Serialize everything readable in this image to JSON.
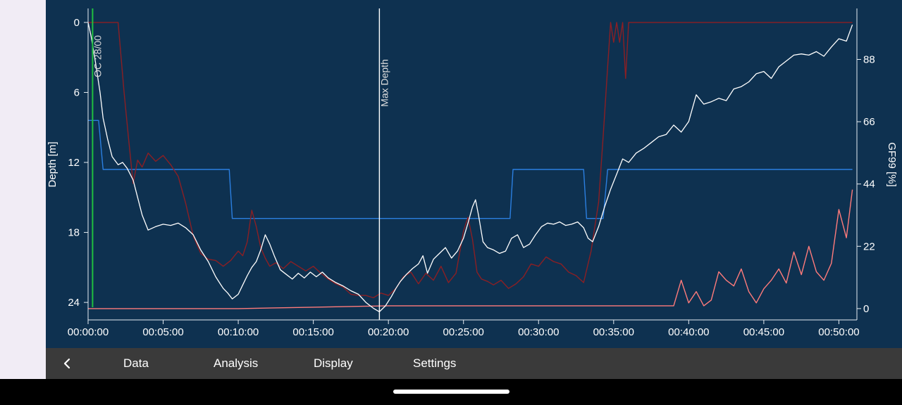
{
  "colors": {
    "background": "#0e3150",
    "depth_line": "#ffffff",
    "gf99_line": "#ff7b7b",
    "tissue_line": "#8b1f24",
    "ceiling_line": "#2b7fe0",
    "event_gas_line": "#20c040",
    "axis": "#e6edf3"
  },
  "markers": {
    "gas_change_label": "OC 28/00",
    "max_depth_label": "Max Depth"
  },
  "nav": {
    "back_icon": "chevron-left-icon",
    "items": [
      "Data",
      "Analysis",
      "Display",
      "Settings"
    ]
  },
  "chart_data": {
    "type": "line",
    "x_unit": "minutes",
    "xlim": [
      0,
      51.2
    ],
    "x_ticks": [
      "00:00:00",
      "00:05:00",
      "00:10:00",
      "00:15:00",
      "00:20:00",
      "00:25:00",
      "00:30:00",
      "00:35:00",
      "00:40:00",
      "00:45:00",
      "00:50:00"
    ],
    "ylabel_left": "Depth [m]",
    "ylim_left": [
      25.5,
      -1.2
    ],
    "y_ticks_left": [
      "0",
      "6",
      "12",
      "18",
      "24"
    ],
    "ylabel_right": "GF99 [%]",
    "ylim_right": [
      -4,
      106
    ],
    "y_ticks_right": [
      "0",
      "22",
      "44",
      "66",
      "88"
    ],
    "gas_change_x": 0.3,
    "max_depth_x": 19.4,
    "series": [
      {
        "key": "depth",
        "axis": "left",
        "x": [
          0,
          0.2,
          0.5,
          0.8,
          1,
          1.3,
          1.6,
          2,
          2.3,
          2.6,
          3,
          3.3,
          3.6,
          4,
          4.5,
          5,
          5.5,
          6,
          6.5,
          7,
          7.5,
          8,
          8.5,
          8.8,
          9,
          9.3,
          9.6,
          10,
          10.3,
          10.6,
          10.9,
          11.2,
          11.5,
          11.8,
          12.1,
          12.4,
          12.8,
          13.2,
          13.6,
          14,
          14.4,
          14.8,
          15.2,
          15.6,
          16,
          16.5,
          17,
          17.5,
          18,
          18.5,
          19,
          19.4,
          19.8,
          20.2,
          20.5,
          20.8,
          21.2,
          21.6,
          22,
          22.3,
          22.6,
          23,
          23.4,
          23.8,
          24.2,
          24.6,
          25,
          25.3,
          25.6,
          25.8,
          26,
          26.3,
          26.6,
          27,
          27.4,
          27.8,
          28.2,
          28.6,
          29,
          29.4,
          29.8,
          30.2,
          30.6,
          31,
          31.4,
          31.8,
          32.2,
          32.6,
          33,
          33.3,
          33.6,
          34,
          34.4,
          34.8,
          35.2,
          35.6,
          36,
          36.5,
          37,
          37.5,
          38,
          38.5,
          39,
          39.5,
          40,
          40.5,
          41,
          41.5,
          42,
          42.5,
          43,
          43.5,
          44,
          44.5,
          45,
          45.5,
          46,
          46.5,
          47,
          47.5,
          48,
          48.5,
          49,
          49.5,
          50,
          50.5,
          50.9
        ],
        "y": [
          0,
          1.2,
          3.5,
          6,
          8.2,
          10,
          11.5,
          12.2,
          12,
          12.5,
          13.5,
          15,
          16.5,
          17.8,
          17.5,
          17.3,
          17.4,
          17.2,
          17.6,
          18.2,
          19.5,
          20.5,
          21.8,
          22.4,
          22.8,
          23.2,
          23.7,
          23.3,
          22.5,
          21.7,
          21,
          20.5,
          19.5,
          18.2,
          19,
          20,
          21.2,
          21.6,
          22,
          21.5,
          21.9,
          21.4,
          21.8,
          21.4,
          21.9,
          22.3,
          22.6,
          23,
          23.3,
          24,
          24.5,
          24.8,
          24.3,
          23.5,
          22.8,
          22.2,
          21.6,
          21.1,
          20.7,
          20,
          21.5,
          20.3,
          19.8,
          19.3,
          20.2,
          19.6,
          18.5,
          17.2,
          15.8,
          15.2,
          16.5,
          18.8,
          19.3,
          19.5,
          19.8,
          19.6,
          18.5,
          18.2,
          19.3,
          19,
          18.2,
          17.5,
          17.2,
          17.3,
          17.1,
          17.4,
          17.3,
          17.1,
          17.6,
          18.5,
          18.8,
          17.5,
          15.8,
          14.3,
          13,
          11.7,
          12,
          11.2,
          10.8,
          10.3,
          9.8,
          9.6,
          8.8,
          9.4,
          8.5,
          6.2,
          7,
          6.8,
          6.5,
          6.7,
          5.7,
          5.5,
          5.1,
          4.4,
          4.2,
          4.8,
          3.8,
          3.3,
          2.8,
          2.7,
          2.8,
          2.5,
          2.9,
          2.1,
          1.4,
          1.6,
          0.2
        ]
      },
      {
        "key": "gf99",
        "axis": "right",
        "x": [
          0,
          5,
          10,
          15,
          20,
          25,
          30,
          35,
          39,
          39.5,
          40,
          40.5,
          41,
          41.5,
          42,
          42.5,
          43,
          43.5,
          44,
          44.5,
          45,
          45.5,
          46,
          46.5,
          47,
          47.5,
          48,
          48.5,
          49,
          49.5,
          50,
          50.5,
          50.9
        ],
        "y": [
          0,
          0,
          0,
          0.5,
          1,
          1,
          1,
          1,
          1,
          10,
          2,
          6,
          1,
          3,
          13,
          10,
          8,
          14,
          6,
          2,
          7,
          10,
          14,
          9,
          20,
          12,
          22,
          13,
          10,
          16,
          35,
          25,
          42
        ]
      },
      {
        "key": "tissue",
        "axis": "left",
        "x": [
          0,
          0.2,
          1,
          2,
          2.4,
          2.7,
          3,
          3.3,
          3.6,
          4,
          4.5,
          5,
          5.5,
          6,
          6.5,
          7,
          7.5,
          8,
          8.5,
          9,
          9.5,
          10,
          10.3,
          10.6,
          10.9,
          11.2,
          11.5,
          11.8,
          12.1,
          12.5,
          13,
          13.5,
          14,
          14.5,
          15,
          15.5,
          16,
          16.5,
          17,
          17.5,
          18,
          18.5,
          19,
          19.5,
          20,
          20.5,
          21,
          21.5,
          22,
          22.5,
          23,
          23.5,
          24,
          24.5,
          25,
          25.3,
          25.6,
          25.9,
          26.2,
          26.6,
          27,
          27.5,
          28,
          28.5,
          29,
          29.5,
          30,
          30.5,
          31,
          31.5,
          32,
          32.5,
          33,
          33.5,
          34,
          34.3,
          34.6,
          34.8,
          35,
          35.2,
          35.4,
          35.6,
          35.8,
          36,
          36.2,
          37,
          40,
          45,
          50,
          50.9
        ],
        "y": [
          0,
          0,
          0,
          0,
          6,
          10,
          13.8,
          11.8,
          12.4,
          11.2,
          11.9,
          11.4,
          12.2,
          13.2,
          15.5,
          18.3,
          19.8,
          20.3,
          20.4,
          20.9,
          20.4,
          19.6,
          20,
          18.8,
          16.1,
          17.5,
          19.3,
          20.2,
          20.9,
          20.6,
          21.1,
          20.5,
          20.9,
          21.3,
          20.9,
          21.5,
          22,
          22.4,
          22.7,
          23.3,
          23.4,
          23.4,
          23.6,
          23.2,
          23.4,
          22.8,
          21.8,
          21.4,
          22.4,
          21.5,
          22.1,
          20.9,
          22.3,
          21.5,
          17.9,
          16.7,
          18.6,
          21.4,
          22,
          22.2,
          22.5,
          22.1,
          22.8,
          22.4,
          21.8,
          20.7,
          20.9,
          20.1,
          20.5,
          20.7,
          21.4,
          21.7,
          22.3,
          19.6,
          15.4,
          9.8,
          3.8,
          0,
          1.7,
          0,
          1.7,
          0,
          4.8,
          0,
          0,
          0,
          0,
          0,
          0,
          0
        ]
      },
      {
        "key": "ceiling",
        "axis": "left",
        "x": [
          0,
          0.7,
          1,
          1.2,
          9.4,
          9.6,
          28.1,
          28.3,
          33,
          33.2,
          34.3,
          34.6,
          50.9
        ],
        "y": [
          8.4,
          8.4,
          12.6,
          12.6,
          12.6,
          16.8,
          16.8,
          12.6,
          12.6,
          16.8,
          16.8,
          12.6,
          12.6
        ]
      }
    ]
  }
}
